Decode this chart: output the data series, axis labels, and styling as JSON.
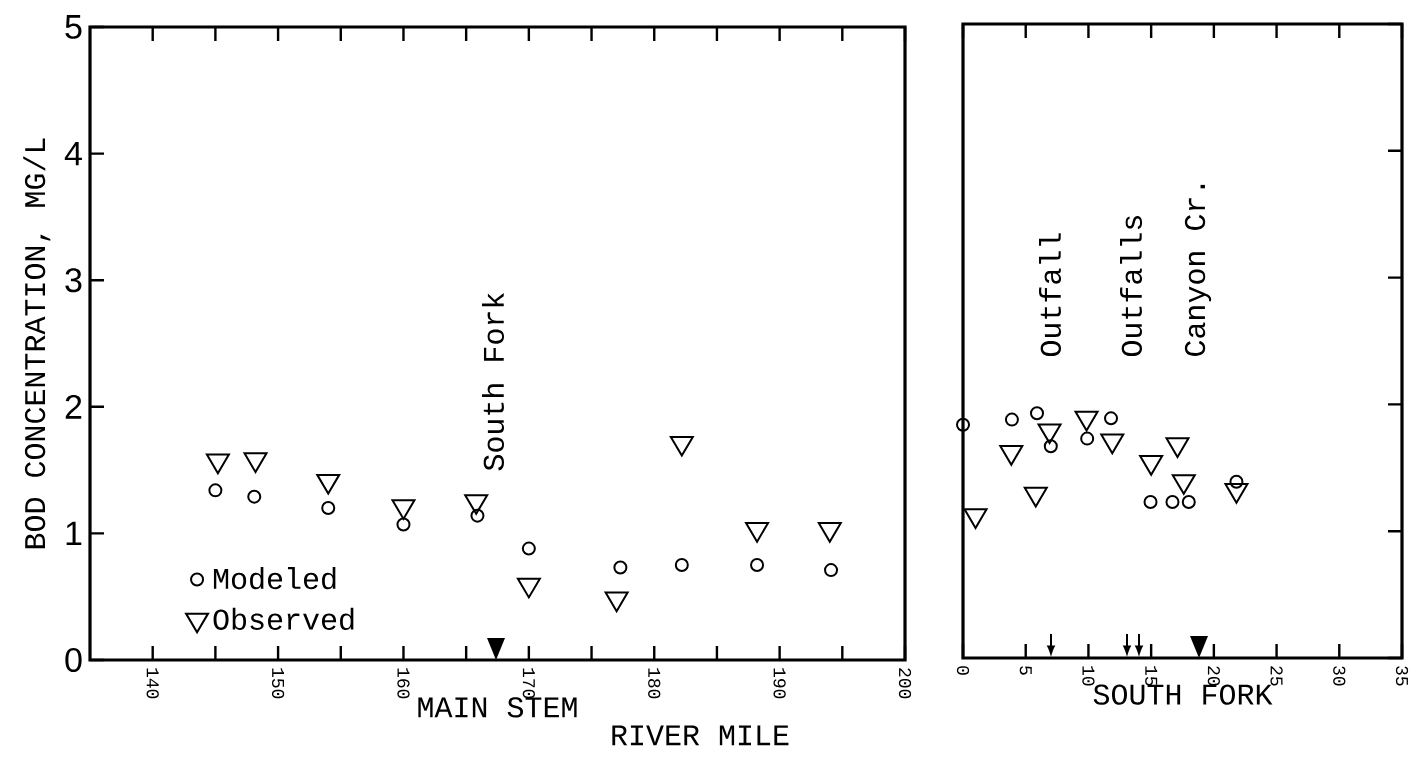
{
  "chart_data": [
    {
      "type": "scatter",
      "xlabel": "MAIN STEM",
      "ylabel": "BOD CONCENTRATION, MG/L",
      "xlim": [
        135,
        200
      ],
      "ylim": [
        0,
        5
      ],
      "xticks": [
        140,
        {
          "value": 145,
          "label": null
        },
        150,
        {
          "value": 155,
          "label": null
        },
        160,
        {
          "value": 165,
          "label": null
        },
        170,
        {
          "value": 175,
          "label": null
        },
        180,
        {
          "value": 185,
          "label": null
        },
        190,
        {
          "value": 195,
          "label": null
        },
        200
      ],
      "yticks": [
        0,
        1,
        2,
        3,
        4,
        5
      ],
      "legend": "bottom left",
      "series": [
        {
          "name": "Modeled",
          "color": "#000000",
          "marker": "circle",
          "x": [
            145.0,
            148.1,
            154.0,
            160.0,
            165.9,
            170.0,
            177.3,
            182.2,
            188.2,
            194.1
          ],
          "values": [
            1.34,
            1.29,
            1.2,
            1.07,
            1.14,
            0.88,
            0.73,
            0.75,
            0.75,
            0.71
          ]
        },
        {
          "name": "Observed",
          "color": "#000000",
          "marker": "triangle",
          "x": [
            145.2,
            148.2,
            154.0,
            160.0,
            165.8,
            170.0,
            177.0,
            182.2,
            188.2,
            194.0
          ],
          "values": [
            1.57,
            1.58,
            1.41,
            1.21,
            1.25,
            0.59,
            0.48,
            1.71,
            1.03,
            1.03
          ]
        }
      ],
      "annotations": [
        "South Fork",
        "RIVER MILE"
      ]
    },
    {
      "type": "scatter",
      "xlabel": "SOUTH FORK",
      "xlim": [
        0,
        35
      ],
      "ylim": [
        0,
        5
      ],
      "xticks": [
        0,
        5,
        10,
        15,
        20,
        25,
        30,
        35
      ],
      "yticks": [
        0,
        1,
        2,
        3,
        4,
        5
      ],
      "tick_labels": "x",
      "series": [
        {
          "color": "#000000",
          "marker": "circle",
          "x": [
            0,
            3.9,
            5.9,
            7.0,
            9.9,
            11.8,
            14.95,
            16.7,
            18.0,
            21.8
          ],
          "values": [
            1.84,
            1.88,
            1.93,
            1.67,
            1.73,
            1.89,
            1.23,
            1.23,
            1.23,
            1.39
          ]
        },
        {
          "color": "#000000",
          "marker": "triangle",
          "x": [
            1.0,
            3.85,
            5.8,
            6.9,
            9.85,
            11.9,
            15.0,
            17.1,
            17.6,
            21.8
          ],
          "values": [
            1.12,
            1.62,
            1.29,
            1.79,
            1.89,
            1.71,
            1.54,
            1.68,
            1.39,
            1.32
          ]
        }
      ],
      "annotations": [
        "Outfall",
        "Outfalls",
        "Canyon Cr."
      ]
    }
  ]
}
